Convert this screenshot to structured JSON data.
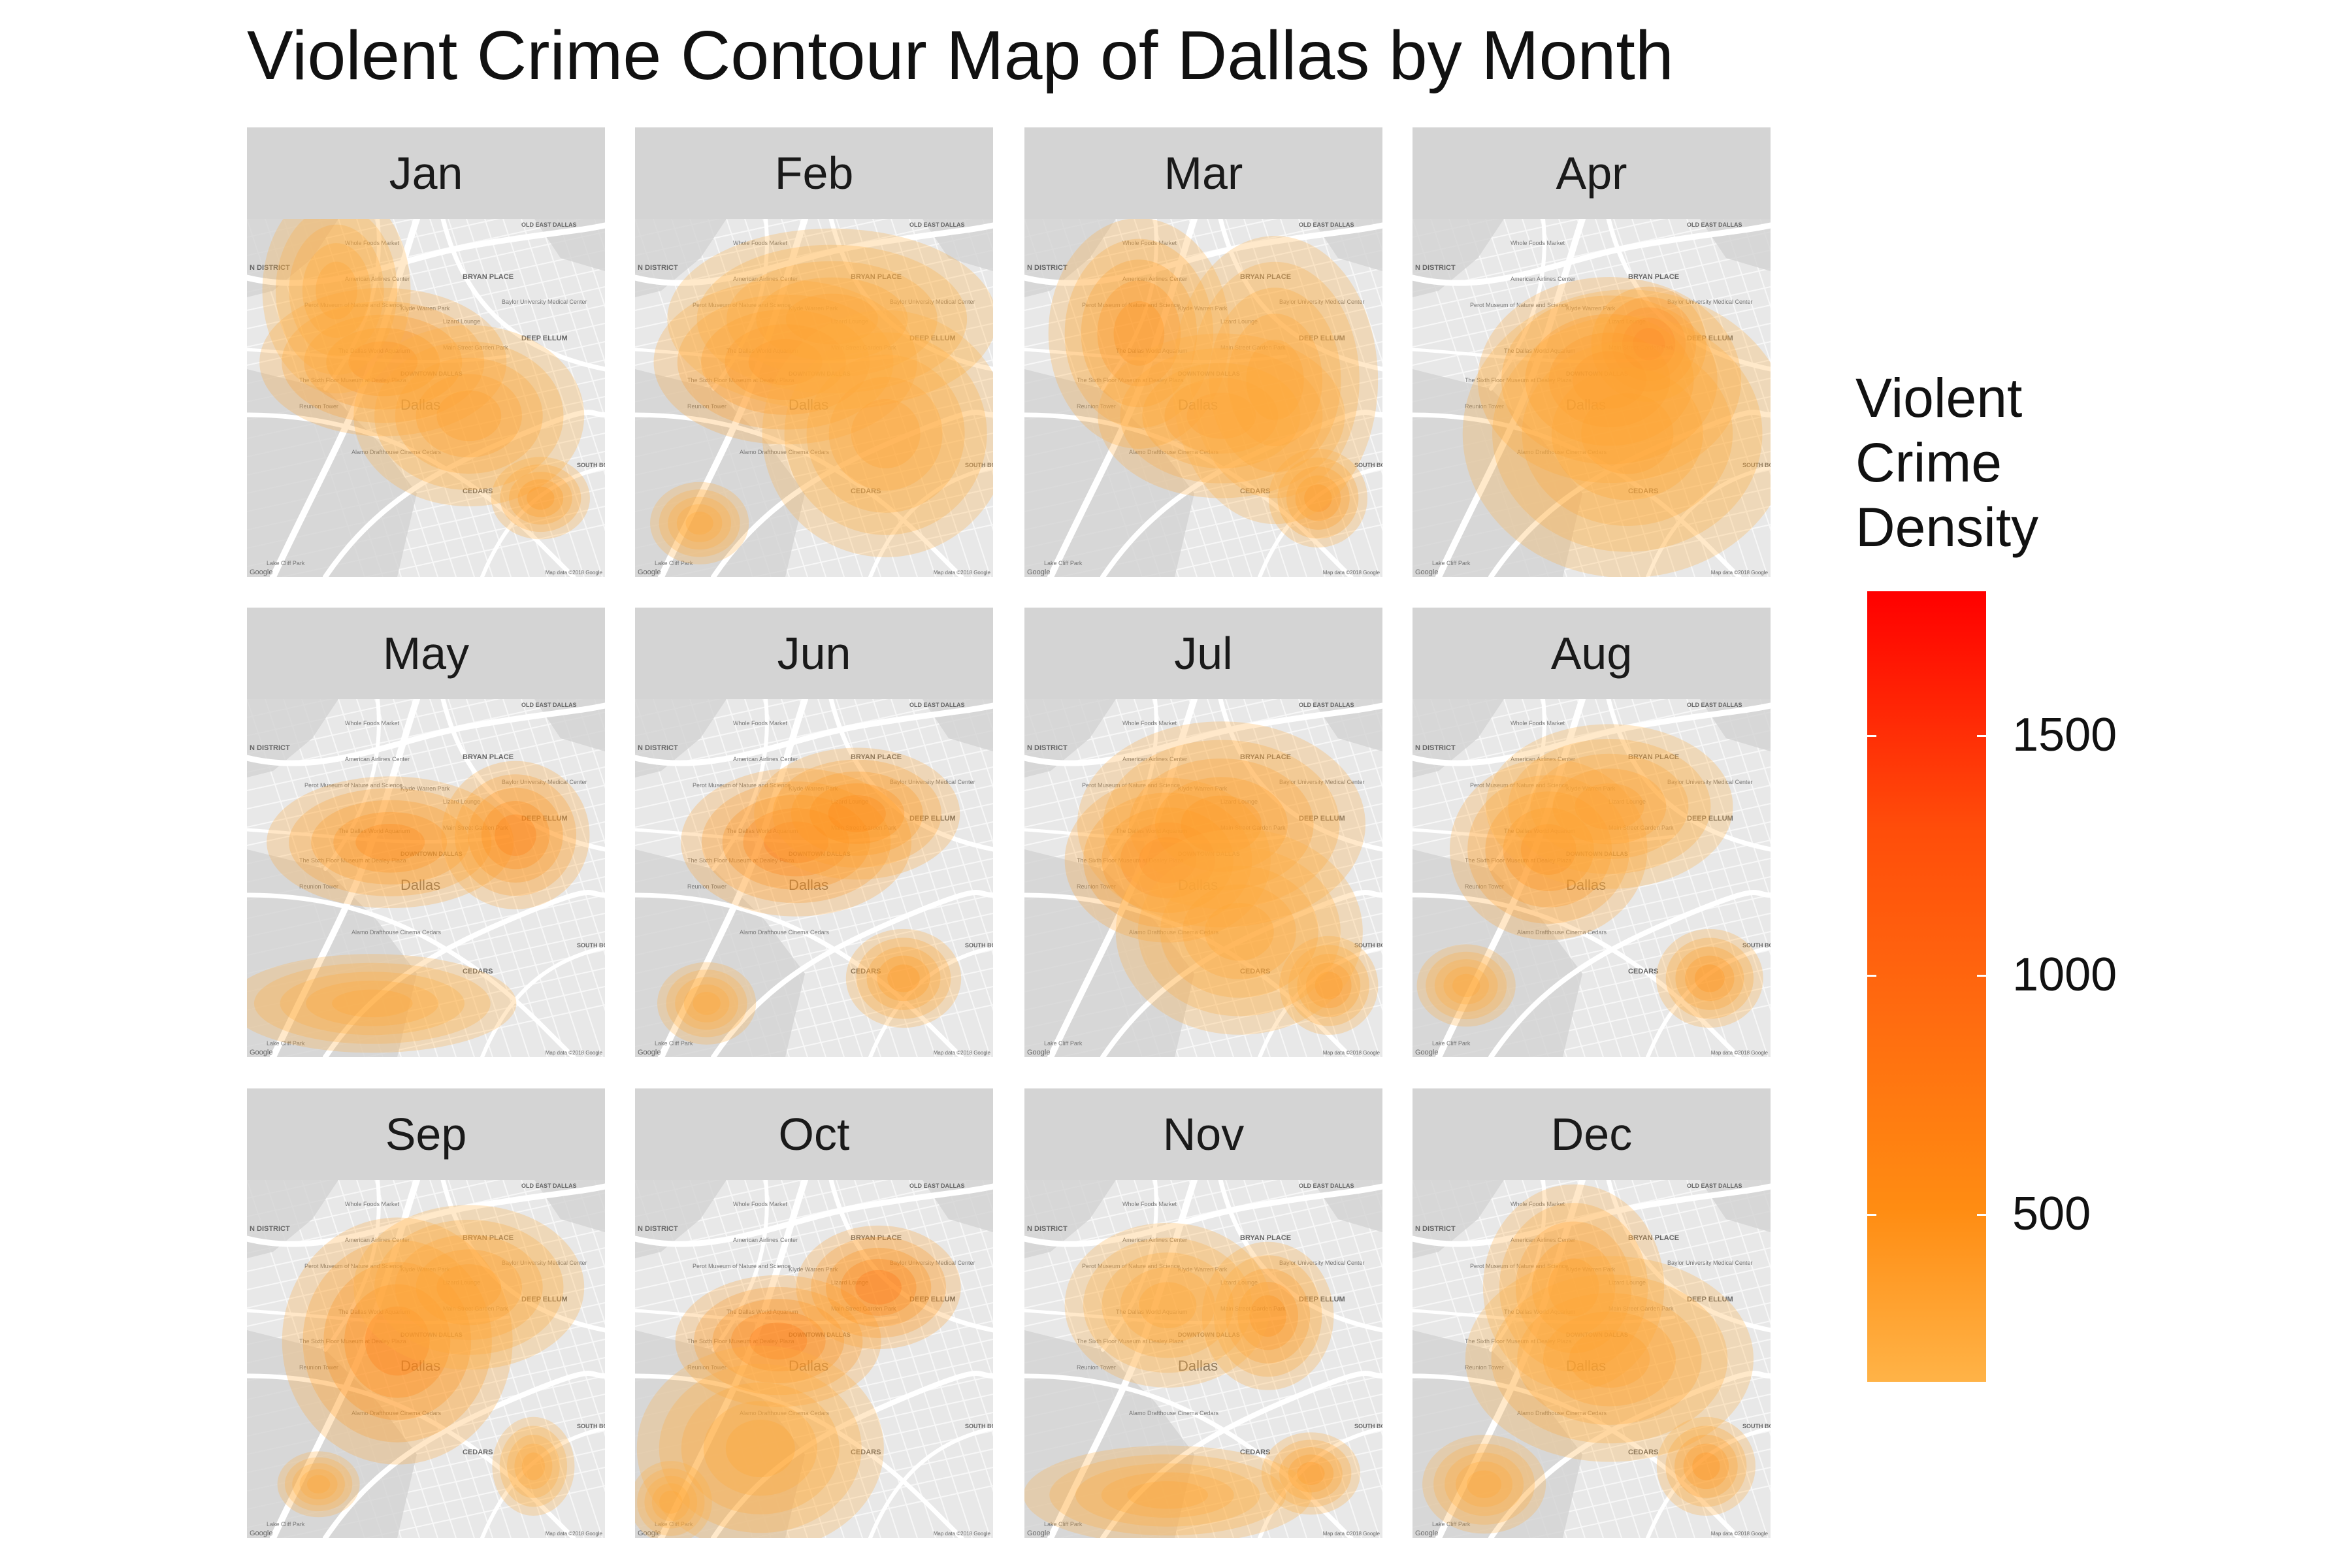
{
  "title": "Violent Crime Contour Map of Dallas by Month",
  "colors": {
    "low": "#ffb347",
    "mid": "#ff8c12",
    "high": "#ff0000",
    "strip": "#d4d4d4",
    "map_bg": "#e8e8e8",
    "roads": "#ffffff"
  },
  "map": {
    "neighborhood_labels": [
      "OLD EAST DALLAS",
      "N DISTRICT",
      "BRYAN PLACE",
      "DEEP ELLUM",
      "DOWNTOWN DALLAS",
      "Dallas",
      "CEDARS",
      "SOUTH BOULEVARD PARK ROW"
    ],
    "poi_labels": [
      "Whole Foods Market",
      "American Airlines Center",
      "Perot Museum of Nature and Science",
      "Klyde Warren Park",
      "Baylor University Medical Center",
      "The Dallas World Aquarium",
      "Lizard Lounge",
      "Main Street Garden Park",
      "The Sixth Floor Museum at Dealey Plaza",
      "Reunion Tower",
      "Alamo Drafthouse Cinema Cedars",
      "Lake Cliff Park"
    ],
    "attribution": "Map data ©2018 Google",
    "logo": "Google"
  },
  "legend": {
    "title_lines": [
      "Violent",
      "Crime",
      "Density"
    ],
    "min": 150,
    "max": 1800,
    "ticks": [
      500,
      1000,
      1500
    ]
  },
  "facets": [
    {
      "label": "Jan",
      "peak": 720,
      "hotspots": [
        [
          0.38,
          0.4,
          0.3,
          0.18,
          720
        ],
        [
          0.62,
          0.55,
          0.28,
          0.22,
          420
        ],
        [
          0.82,
          0.78,
          0.12,
          0.1,
          560
        ],
        [
          0.25,
          0.2,
          0.18,
          0.25,
          380
        ]
      ]
    },
    {
      "label": "Feb",
      "peak": 800,
      "hotspots": [
        [
          0.42,
          0.4,
          0.32,
          0.2,
          800
        ],
        [
          0.55,
          0.28,
          0.4,
          0.22,
          380
        ],
        [
          0.7,
          0.6,
          0.3,
          0.3,
          360
        ],
        [
          0.18,
          0.85,
          0.12,
          0.1,
          300
        ]
      ]
    },
    {
      "label": "Mar",
      "peak": 680,
      "hotspots": [
        [
          0.32,
          0.32,
          0.22,
          0.28,
          620
        ],
        [
          0.55,
          0.55,
          0.3,
          0.2,
          460
        ],
        [
          0.82,
          0.78,
          0.12,
          0.12,
          680
        ],
        [
          0.7,
          0.45,
          0.25,
          0.35,
          340
        ]
      ]
    },
    {
      "label": "Apr",
      "peak": 1750,
      "hotspots": [
        [
          0.66,
          0.35,
          0.14,
          0.14,
          1750
        ],
        [
          0.55,
          0.45,
          0.32,
          0.25,
          800
        ],
        [
          0.6,
          0.6,
          0.4,
          0.35,
          380
        ]
      ]
    },
    {
      "label": "May",
      "peak": 820,
      "hotspots": [
        [
          0.4,
          0.4,
          0.3,
          0.16,
          700
        ],
        [
          0.75,
          0.38,
          0.18,
          0.18,
          820
        ],
        [
          0.35,
          0.85,
          0.35,
          0.12,
          300
        ]
      ]
    },
    {
      "label": "Jun",
      "peak": 880,
      "hotspots": [
        [
          0.45,
          0.4,
          0.28,
          0.18,
          880
        ],
        [
          0.62,
          0.32,
          0.25,
          0.16,
          700
        ],
        [
          0.75,
          0.78,
          0.14,
          0.12,
          560
        ],
        [
          0.2,
          0.85,
          0.12,
          0.1,
          300
        ]
      ]
    },
    {
      "label": "Jul",
      "peak": 980,
      "hotspots": [
        [
          0.4,
          0.45,
          0.25,
          0.2,
          980
        ],
        [
          0.55,
          0.35,
          0.35,
          0.25,
          500
        ],
        [
          0.85,
          0.8,
          0.12,
          0.12,
          620
        ],
        [
          0.6,
          0.65,
          0.3,
          0.25,
          340
        ]
      ]
    },
    {
      "label": "Aug",
      "peak": 760,
      "hotspots": [
        [
          0.38,
          0.42,
          0.24,
          0.22,
          760
        ],
        [
          0.55,
          0.3,
          0.3,
          0.2,
          420
        ],
        [
          0.83,
          0.78,
          0.13,
          0.12,
          600
        ],
        [
          0.15,
          0.8,
          0.12,
          0.1,
          320
        ]
      ]
    },
    {
      "label": "Sep",
      "peak": 860,
      "hotspots": [
        [
          0.42,
          0.45,
          0.28,
          0.3,
          860
        ],
        [
          0.62,
          0.3,
          0.28,
          0.2,
          420
        ],
        [
          0.8,
          0.8,
          0.1,
          0.12,
          360
        ],
        [
          0.2,
          0.85,
          0.1,
          0.08,
          300
        ]
      ]
    },
    {
      "label": "Oct",
      "peak": 920,
      "hotspots": [
        [
          0.4,
          0.45,
          0.25,
          0.16,
          880
        ],
        [
          0.68,
          0.3,
          0.2,
          0.15,
          920
        ],
        [
          0.35,
          0.75,
          0.3,
          0.25,
          330
        ],
        [
          0.1,
          0.9,
          0.1,
          0.1,
          300
        ]
      ]
    },
    {
      "label": "Nov",
      "peak": 640,
      "hotspots": [
        [
          0.68,
          0.38,
          0.16,
          0.18,
          640
        ],
        [
          0.4,
          0.35,
          0.25,
          0.2,
          340
        ],
        [
          0.8,
          0.82,
          0.12,
          0.1,
          560
        ],
        [
          0.4,
          0.88,
          0.35,
          0.12,
          300
        ]
      ]
    },
    {
      "label": "Dec",
      "peak": 600,
      "hotspots": [
        [
          0.45,
          0.3,
          0.22,
          0.25,
          500
        ],
        [
          0.55,
          0.5,
          0.35,
          0.25,
          420
        ],
        [
          0.82,
          0.8,
          0.12,
          0.12,
          600
        ],
        [
          0.2,
          0.85,
          0.15,
          0.12,
          300
        ]
      ]
    }
  ]
}
